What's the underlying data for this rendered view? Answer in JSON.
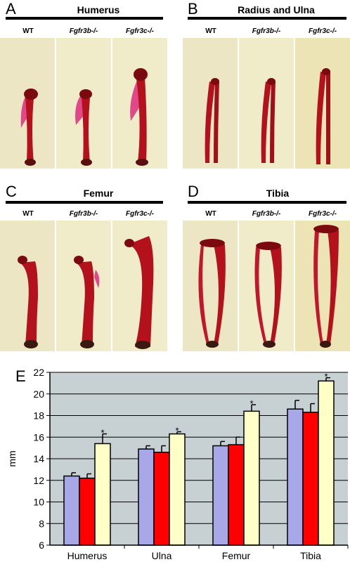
{
  "panels": {
    "A": {
      "letter": "A",
      "title": "Humerus"
    },
    "B": {
      "letter": "B",
      "title": "Radius and Ulna"
    },
    "C": {
      "letter": "C",
      "title": "Femur"
    },
    "D": {
      "letter": "D",
      "title": "Tibia"
    },
    "E": {
      "letter": "E"
    }
  },
  "columns": {
    "wt": "WT",
    "b": "Fgfr3b-/-",
    "c": "Fgfr3c-/-"
  },
  "colors": {
    "photo_bg": "#efe8c6",
    "bone": "#b3121c",
    "cartilage": "#e0488a",
    "wt_bar": "#a8a8e8",
    "b_bar": "#ff0000",
    "c_bar": "#ffffc8",
    "plot_bg": "#c7d0d2"
  },
  "chart_data": {
    "type": "bar",
    "categories": [
      "Humerus",
      "Ulna",
      "Femur",
      "Tibia"
    ],
    "series": [
      {
        "values": [
          12.4,
          14.9,
          15.2,
          18.6
        ],
        "errors": [
          0.3,
          0.3,
          0.4,
          0.8
        ]
      },
      {
        "values": [
          12.2,
          14.6,
          15.3,
          18.3
        ],
        "errors": [
          0.4,
          0.6,
          0.7,
          0.8
        ]
      },
      {
        "values": [
          15.4,
          16.3,
          18.4,
          21.2
        ],
        "errors": [
          0.9,
          0.2,
          0.6,
          0.3
        ],
        "marker": "*"
      }
    ],
    "ylabel": "mm",
    "ylim": [
      6,
      22
    ],
    "yticks": [
      6,
      8,
      10,
      12,
      14,
      16,
      18,
      20,
      22
    ],
    "grid": true
  }
}
